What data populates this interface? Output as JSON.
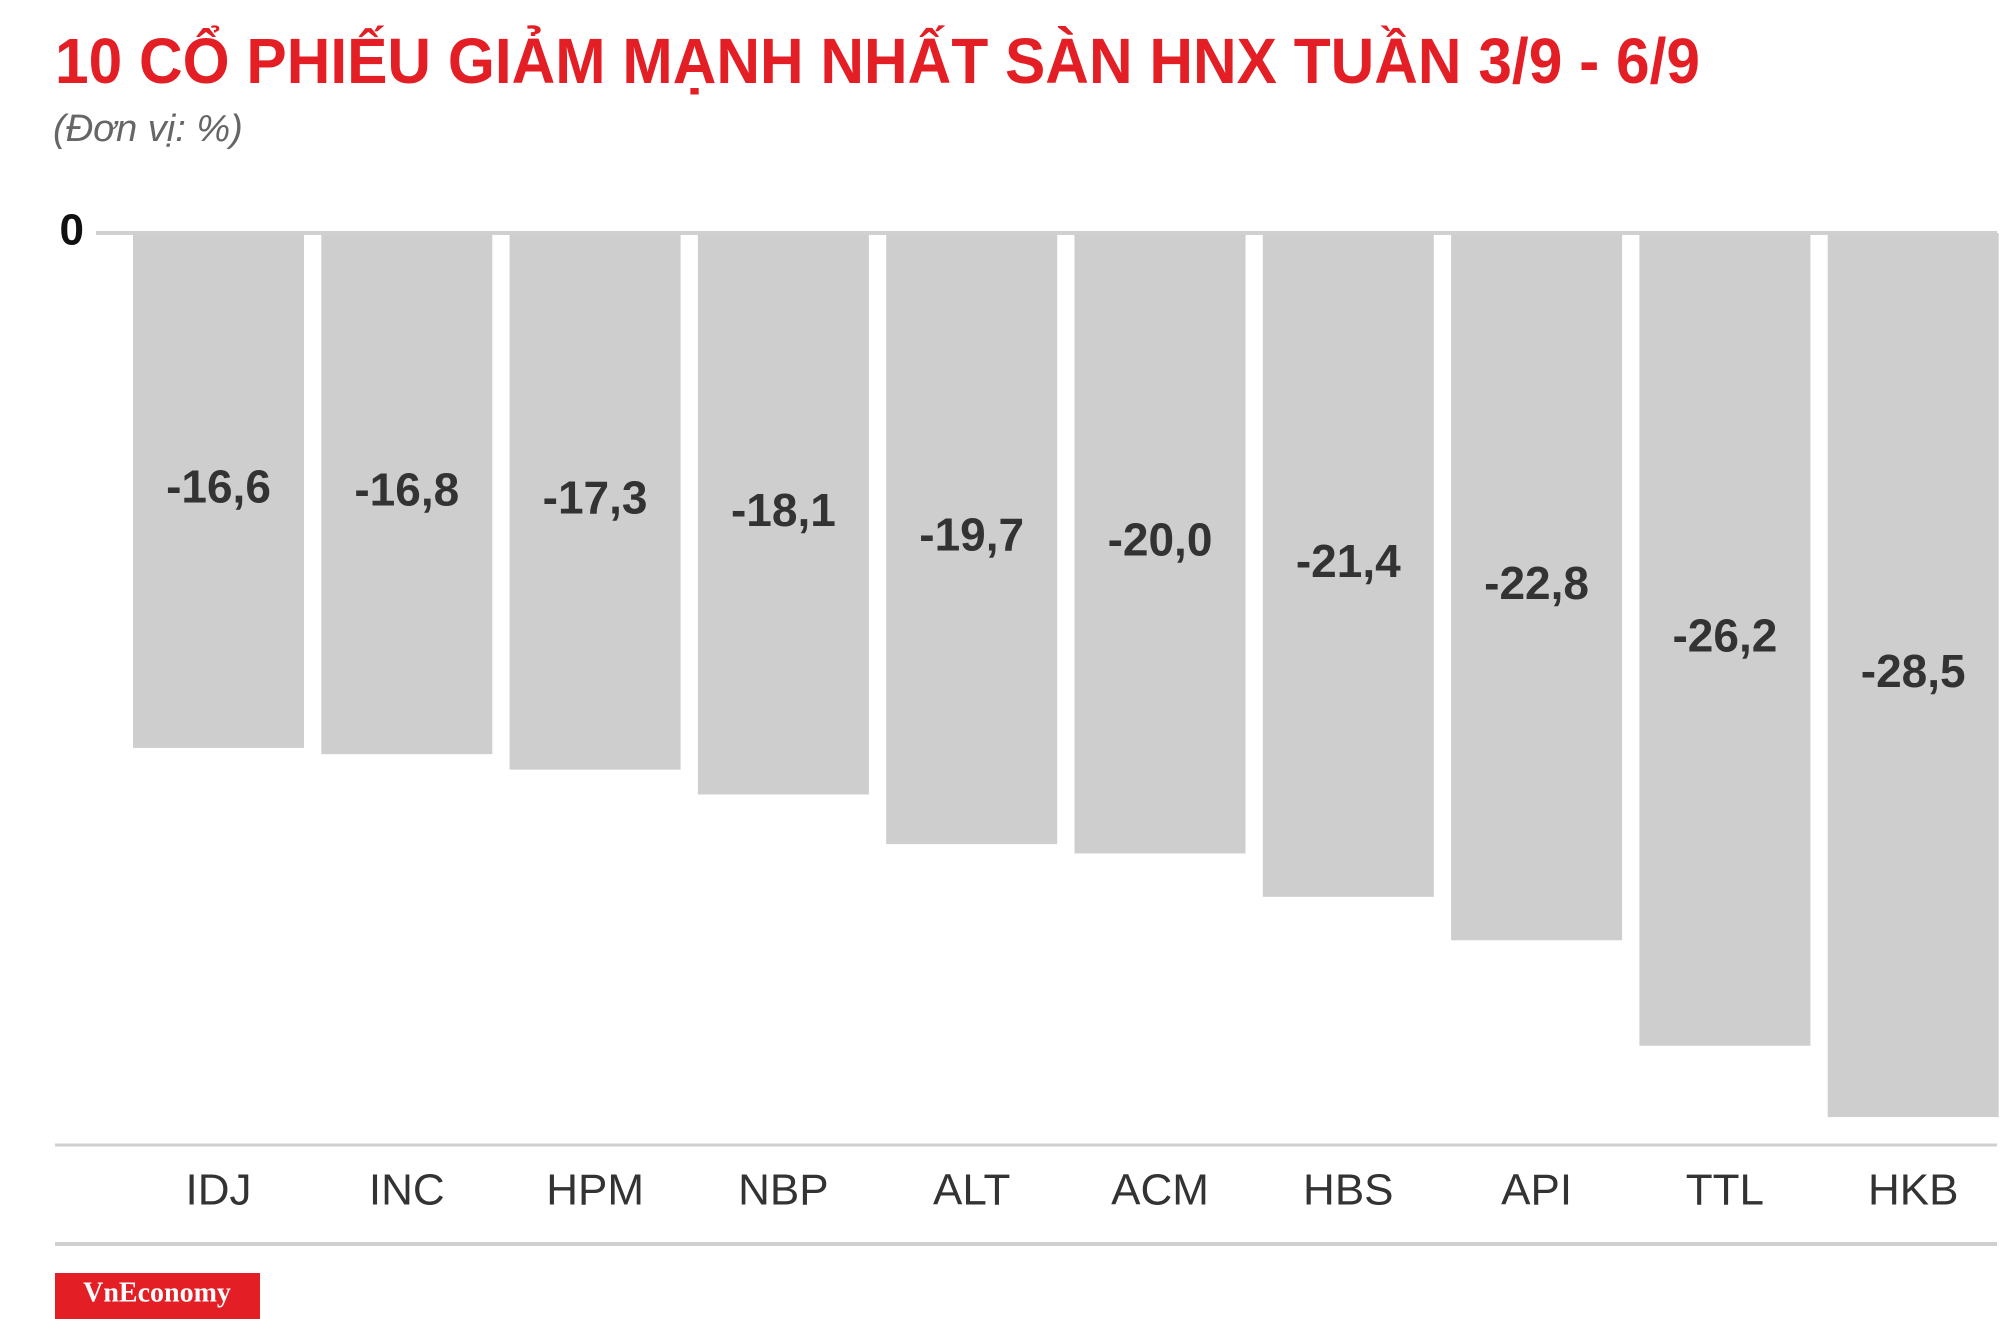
{
  "chart_data": {
    "type": "bar",
    "title": "10 CỔ PHIẾU GIẢM MẠNH NHẤT SÀN HNX TUẦN 3/9 - 6/9",
    "subtitle": "(Đơn vị: %)",
    "categories": [
      "IDJ",
      "INC",
      "HPM",
      "NBP",
      "ALT",
      "ACM",
      "HBS",
      "API",
      "TTL",
      "HKB"
    ],
    "values": [
      -16.6,
      -16.8,
      -17.3,
      -18.1,
      -19.7,
      -20.0,
      -21.4,
      -22.8,
      -26.2,
      -28.5
    ],
    "value_labels": [
      "-16,6",
      "-16,8",
      "-17,3",
      "-18,1",
      "-19,7",
      "-20,0",
      "-21,4",
      "-22,8",
      "-26,2",
      "-28,5"
    ],
    "color": "#cfcecf",
    "ylim": [
      -29.4,
      0
    ],
    "yticks": [
      0
    ],
    "logo": "VnEconomy"
  }
}
